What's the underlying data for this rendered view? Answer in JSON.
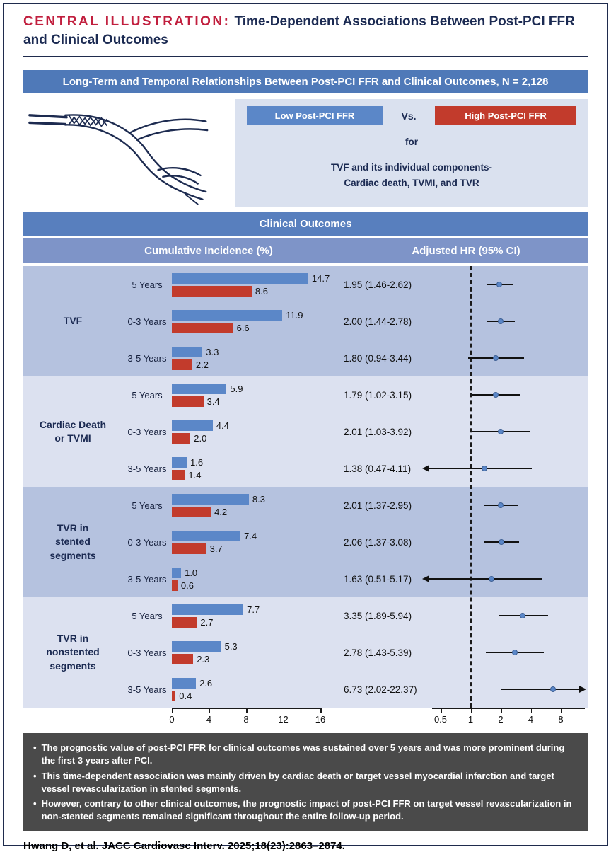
{
  "header": {
    "eyebrow": "CENTRAL ILLUSTRATION:",
    "title": "Time-Dependent Associations Between Post-PCI FFR and Clinical Outcomes"
  },
  "banner": "Long-Term and Temporal Relationships Between Post-PCI FFR and Clinical Outcomes, N = 2,128",
  "legend": {
    "low_label": "Low Post-PCI FFR",
    "vs": "Vs.",
    "high_label": "High Post-PCI FFR",
    "for_text": "for",
    "desc_line1": "TVF and its individual components-",
    "desc_line2": "Cardiac death, TVMI, and TVR"
  },
  "section_header": "Clinical Outcomes",
  "columns": {
    "left": "Cumulative Incidence (%)",
    "right": "Adjusted HR (95% CI)"
  },
  "chart_data": {
    "type": "bar",
    "note": "paired horizontal bars (cumulative incidence %) plus forest plot of adjusted HR (95% CI), log2 scale",
    "bar_axis": {
      "ticks": [
        0,
        4,
        8,
        12,
        16
      ],
      "max": 16
    },
    "hr_axis": {
      "ticks": [
        0.5,
        1,
        2,
        4,
        8
      ],
      "reference": 1,
      "scale": "log2"
    },
    "series_names": [
      "Low Post-PCI FFR",
      "High Post-PCI FFR"
    ],
    "groups": [
      {
        "label": "TVF",
        "rows": [
          {
            "period": "5 Years",
            "low": 14.7,
            "high": 8.6,
            "hr_text": "1.95 (1.46-2.62)",
            "hr": 1.95,
            "ci_low": 1.46,
            "ci_high": 2.62,
            "arrow": null
          },
          {
            "period": "0-3 Years",
            "low": 11.9,
            "high": 6.6,
            "hr_text": "2.00 (1.44-2.78)",
            "hr": 2.0,
            "ci_low": 1.44,
            "ci_high": 2.78,
            "arrow": null
          },
          {
            "period": "3-5 Years",
            "low": 3.3,
            "high": 2.2,
            "hr_text": "1.80 (0.94-3.44)",
            "hr": 1.8,
            "ci_low": 0.94,
            "ci_high": 3.44,
            "arrow": null
          }
        ]
      },
      {
        "label": "Cardiac Death\nor TVMI",
        "rows": [
          {
            "period": "5 Years",
            "low": 5.9,
            "high": 3.4,
            "hr_text": "1.79 (1.02-3.15)",
            "hr": 1.79,
            "ci_low": 1.02,
            "ci_high": 3.15,
            "arrow": null
          },
          {
            "period": "0-3 Years",
            "low": 4.4,
            "high": 2.0,
            "hr_text": "2.01 (1.03-3.92)",
            "hr": 2.01,
            "ci_low": 1.03,
            "ci_high": 3.92,
            "arrow": null
          },
          {
            "period": "3-5 Years",
            "low": 1.6,
            "high": 1.4,
            "hr_text": "1.38 (0.47-4.11)",
            "hr": 1.38,
            "ci_low": 0.47,
            "ci_high": 4.11,
            "arrow": "left"
          }
        ]
      },
      {
        "label": "TVR in\nstented\nsegments",
        "rows": [
          {
            "period": "5 Years",
            "low": 8.3,
            "high": 4.2,
            "hr_text": "2.01 (1.37-2.95)",
            "hr": 2.01,
            "ci_low": 1.37,
            "ci_high": 2.95,
            "arrow": null
          },
          {
            "period": "0-3 Years",
            "low": 7.4,
            "high": 3.7,
            "hr_text": "2.06 (1.37-3.08)",
            "hr": 2.06,
            "ci_low": 1.37,
            "ci_high": 3.08,
            "arrow": null
          },
          {
            "period": "3-5 Years",
            "low": 1.0,
            "high": 0.6,
            "hr_text": "1.63 (0.51-5.17)",
            "hr": 1.63,
            "ci_low": 0.51,
            "ci_high": 5.17,
            "arrow": "left"
          }
        ]
      },
      {
        "label": "TVR in\nnonstented\nsegments",
        "rows": [
          {
            "period": "5 Years",
            "low": 7.7,
            "high": 2.7,
            "hr_text": "3.35 (1.89-5.94)",
            "hr": 3.35,
            "ci_low": 1.89,
            "ci_high": 5.94,
            "arrow": null
          },
          {
            "period": "0-3 Years",
            "low": 5.3,
            "high": 2.3,
            "hr_text": "2.78 (1.43-5.39)",
            "hr": 2.78,
            "ci_low": 1.43,
            "ci_high": 5.39,
            "arrow": null
          },
          {
            "period": "3-5 Years",
            "low": 2.6,
            "high": 0.4,
            "hr_text": "6.73 (2.02-22.37)",
            "hr": 6.73,
            "ci_low": 2.02,
            "ci_high": 22.37,
            "arrow": "right"
          }
        ]
      }
    ],
    "colors": {
      "low_bar": "#5b87c8",
      "high_bar": "#c23b2c",
      "accent_red": "#c11f3e",
      "navy": "#1b2a52"
    }
  },
  "takeaways": [
    "The prognostic value of post-PCI FFR for clinical outcomes was sustained over 5 years and was more prominent during the first 3 years after PCI.",
    "This time-dependent association was mainly driven by cardiac death or target vessel myocardial infarction and target vessel revascularization in stented segments.",
    "However, contrary to other clinical outcomes, the prognostic impact of post-PCI FFR on target vessel revascularization in non-stented segments remained significant throughout the entire follow-up period."
  ],
  "citation": "Hwang D, et al. JACC Cardiovasc Interv. 2025;18(23):2863–2874."
}
